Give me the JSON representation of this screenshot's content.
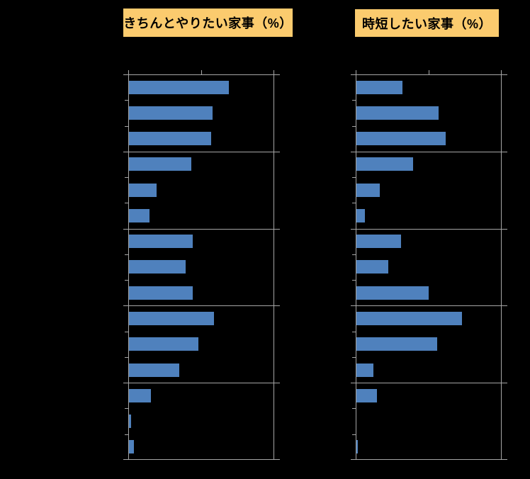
{
  "headers": {
    "left": "きちんとやりたい家事（%）",
    "right": "時短したい家事（%）"
  },
  "colors": {
    "background": "#000000",
    "bar": "#4F81BD",
    "axis_line": "#A6A6A6",
    "header_fill": "#FBCB6E",
    "header_text": "#000000"
  },
  "chart_data": [
    {
      "type": "bar",
      "orientation": "horizontal",
      "title": "きちんとやりたい家事（%）",
      "value_axis": {
        "min": 0,
        "max": 100,
        "ticks": [
          0,
          50,
          100
        ],
        "labels_visible": false,
        "position": "top"
      },
      "category_labels_visible": false,
      "legend": "none",
      "gridlines": "category-separators",
      "groups": [
        {
          "values": [
            69,
            58,
            57
          ]
        },
        {
          "values": [
            43,
            19,
            14
          ]
        },
        {
          "values": [
            44,
            39,
            44
          ]
        },
        {
          "values": [
            59,
            48,
            35
          ]
        },
        {
          "values": [
            15,
            1.3,
            3.5
          ]
        }
      ]
    },
    {
      "type": "bar",
      "orientation": "horizontal",
      "title": "時短したい家事（%）",
      "value_axis": {
        "min": 0,
        "max": 100,
        "ticks": [
          0,
          50,
          100
        ],
        "labels_visible": false,
        "position": "top"
      },
      "category_labels_visible": false,
      "legend": "none",
      "gridlines": "category-separators",
      "groups": [
        {
          "values": [
            32,
            57,
            62
          ]
        },
        {
          "values": [
            39,
            16,
            6
          ]
        },
        {
          "values": [
            31,
            22,
            50
          ]
        },
        {
          "values": [
            73,
            56,
            12
          ]
        },
        {
          "values": [
            14,
            0,
            1
          ]
        }
      ]
    }
  ]
}
